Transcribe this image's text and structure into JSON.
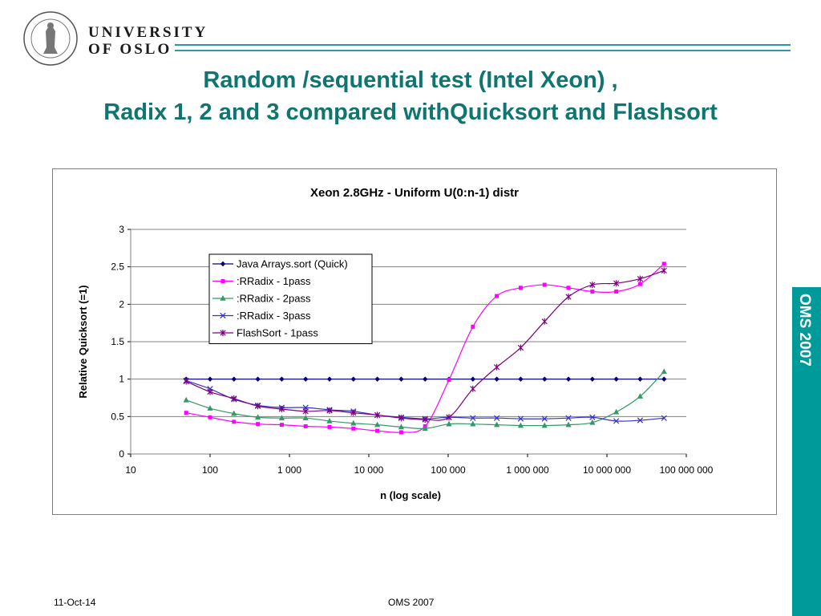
{
  "header": {
    "logo_name": "university-seal",
    "university_line1": "UNIVERSITY",
    "university_line2": "OF OSLO",
    "accent_color": "#2e9aa0"
  },
  "slide": {
    "title_line1": "Random /sequential test  (Intel Xeon) ,",
    "title_line2": "Radix 1, 2 and 3 compared withQuicksort  and Flashsort",
    "title_color": "#11756f"
  },
  "sidebar": {
    "label": "OMS 2007",
    "color": "#009a9a"
  },
  "footer": {
    "date": "11-Oct-14",
    "center": "OMS 2007"
  },
  "chart_data": {
    "type": "line",
    "title": "Xeon 2.8GHz - Uniform U(0:n-1) distr",
    "xlabel": "n (log scale)",
    "ylabel": "Relative Quicksort (=1)",
    "xscale": "log",
    "xlim": [
      10,
      100000000
    ],
    "ylim": [
      0,
      3
    ],
    "x_ticks": [
      10,
      100,
      1000,
      10000,
      100000,
      1000000,
      10000000,
      100000000
    ],
    "x_tick_labels": [
      "10",
      "100",
      "1 000",
      "10 000",
      "100 000",
      "1 000 000",
      "10 000 000",
      "100 000 000"
    ],
    "y_ticks": [
      0,
      0.5,
      1,
      1.5,
      2,
      2.5,
      3
    ],
    "y_tick_labels": [
      "0",
      "0.5",
      "1",
      "1.5",
      "2",
      "2.5",
      "3"
    ],
    "grid": "horizontal",
    "legend_position": "top-left inside plot",
    "x": [
      50,
      100,
      200,
      400,
      800,
      1600,
      3200,
      6400,
      12800,
      25600,
      51200,
      102400,
      204800,
      409600,
      819200,
      1638400,
      3276800,
      6553600,
      13107200,
      26214400,
      52428800
    ],
    "series": [
      {
        "name": "Java Arrays.sort (Quick)",
        "color": "#000080",
        "marker": "diamond",
        "values": [
          1,
          1,
          1,
          1,
          1,
          1,
          1,
          1,
          1,
          1,
          1,
          1,
          1,
          1,
          1,
          1,
          1,
          1,
          1,
          1,
          1
        ]
      },
      {
        "name": ":RRadix - 1pass",
        "color": "#ff00ff",
        "marker": "square",
        "values": [
          0.55,
          0.49,
          0.43,
          0.4,
          0.39,
          0.37,
          0.36,
          0.34,
          0.31,
          0.29,
          0.37,
          0.99,
          1.7,
          2.11,
          2.22,
          2.26,
          2.22,
          2.17,
          2.17,
          2.27,
          2.54
        ]
      },
      {
        "name": ":RRadix - 2pass",
        "color": "#339966",
        "marker": "triangle",
        "values": [
          0.72,
          0.61,
          0.54,
          0.49,
          0.48,
          0.48,
          0.44,
          0.41,
          0.39,
          0.36,
          0.34,
          0.4,
          0.4,
          0.39,
          0.38,
          0.38,
          0.39,
          0.42,
          0.56,
          0.77,
          1.1
        ]
      },
      {
        "name": ":RRadix - 3pass",
        "color": "#3333cc",
        "marker": "x",
        "values": [
          0.98,
          0.87,
          0.73,
          0.65,
          0.62,
          0.62,
          0.59,
          0.57,
          0.52,
          0.49,
          0.47,
          0.49,
          0.48,
          0.48,
          0.47,
          0.47,
          0.48,
          0.49,
          0.44,
          0.45,
          0.48
        ]
      },
      {
        "name": "FlashSort - 1pass",
        "color": "#800080",
        "marker": "star",
        "values": [
          0.97,
          0.83,
          0.74,
          0.64,
          0.6,
          0.57,
          0.58,
          0.55,
          0.52,
          0.48,
          0.46,
          0.49,
          0.87,
          1.16,
          1.42,
          1.77,
          2.1,
          2.26,
          2.28,
          2.34,
          2.45
        ]
      }
    ]
  }
}
